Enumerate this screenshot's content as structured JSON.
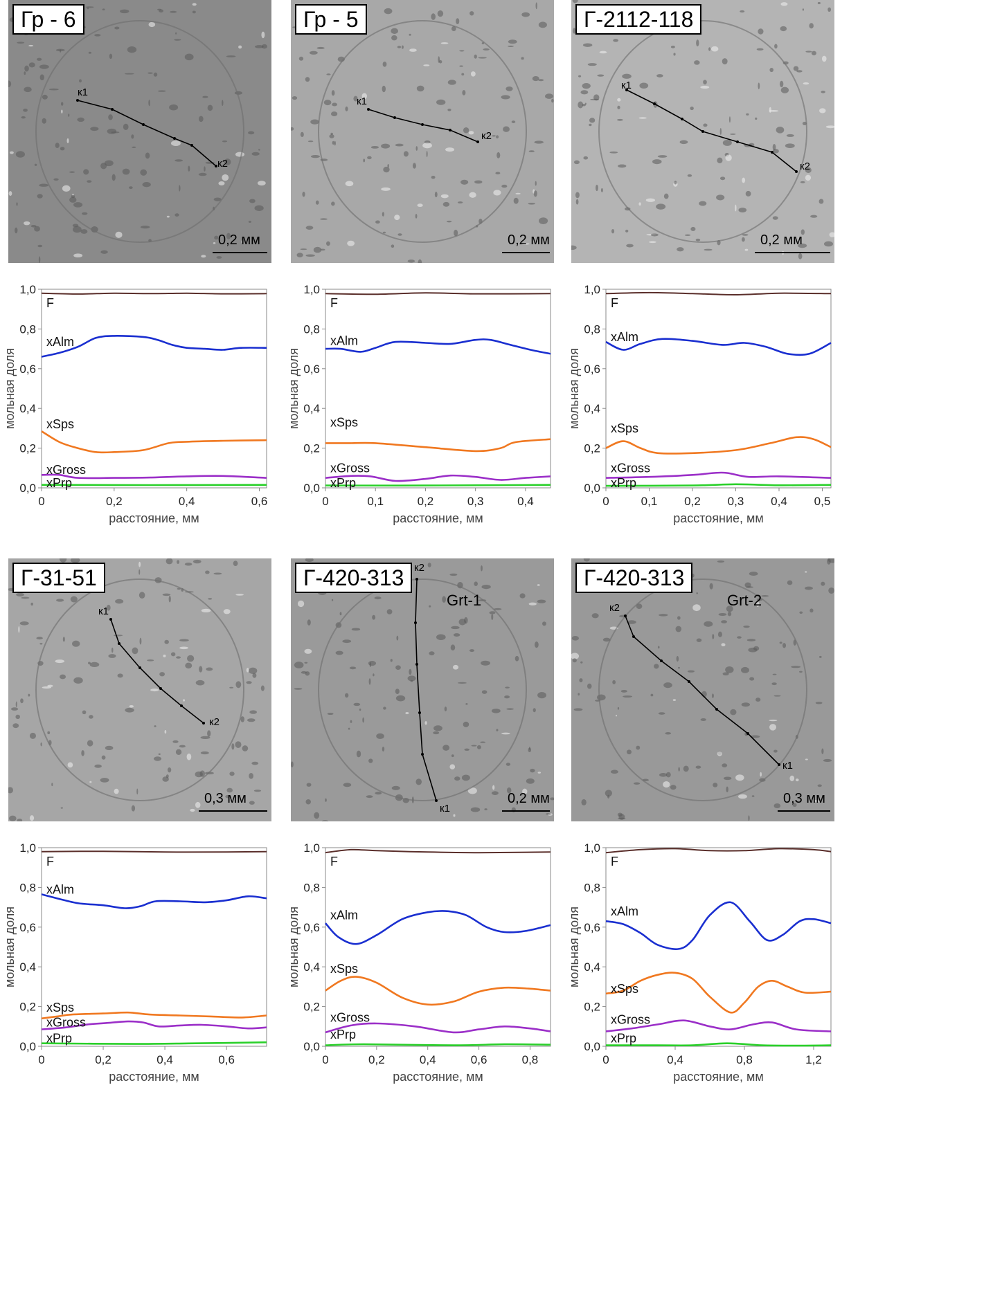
{
  "images": [
    {
      "sample": "Гр - 6",
      "grain": "",
      "start_label": "к1",
      "end_label": "к2",
      "scale": "0,2 мм",
      "tone": "#8a8a8a"
    },
    {
      "sample": "Гр - 5",
      "grain": "",
      "start_label": "к1",
      "end_label": "к2",
      "scale": "0,2 мм",
      "tone": "#a8a8a8"
    },
    {
      "sample": "Г-2112-118",
      "grain": "",
      "start_label": "к1",
      "end_label": "к2",
      "scale": "0,2 мм",
      "tone": "#b4b4b4"
    },
    {
      "sample": "Г-31-51",
      "grain": "",
      "start_label": "к1",
      "end_label": "к2",
      "scale": "0,3 мм",
      "tone": "#a6a6a6"
    },
    {
      "sample": "Г-420-313",
      "grain": "Grt-1",
      "start_label": "к1",
      "end_label": "к2",
      "scale": "0,2 мм",
      "tone": "#9a9a9a"
    },
    {
      "sample": "Г-420-313",
      "grain": "Grt-2",
      "start_label": "к1",
      "end_label": "к2",
      "scale": "0,3 мм",
      "tone": "#999999"
    }
  ],
  "colors": {
    "F": "#5a2e2a",
    "xAlm": "#1a2fd0",
    "xSps": "#f07820",
    "xGross": "#9b2fc8",
    "xPrp": "#2ad02a"
  },
  "chart_data": [
    {
      "type": "line",
      "xlabel": "расстояние, мм",
      "ylabel": "мольная доля",
      "xlim": [
        0,
        0.62
      ],
      "ylim": [
        0,
        1.0
      ],
      "xticks": [
        "0",
        "0,2",
        "0,4",
        "0,6"
      ],
      "xtick_values": [
        0,
        0.2,
        0.4,
        0.6
      ],
      "yticks": [
        "0,0",
        "0,2",
        "0,4",
        "0,6",
        "0,8",
        "1,0"
      ],
      "series": [
        {
          "name": "F",
          "x": [
            0,
            0.1,
            0.2,
            0.3,
            0.4,
            0.5,
            0.62
          ],
          "y": [
            0.98,
            0.976,
            0.98,
            0.978,
            0.98,
            0.977,
            0.978
          ]
        },
        {
          "name": "xAlm",
          "x": [
            0,
            0.05,
            0.1,
            0.15,
            0.2,
            0.28,
            0.32,
            0.36,
            0.4,
            0.45,
            0.5,
            0.55,
            0.62
          ],
          "y": [
            0.66,
            0.68,
            0.71,
            0.755,
            0.765,
            0.76,
            0.745,
            0.72,
            0.705,
            0.7,
            0.695,
            0.705,
            0.705
          ]
        },
        {
          "name": "xSps",
          "x": [
            0,
            0.05,
            0.1,
            0.15,
            0.2,
            0.28,
            0.35,
            0.4,
            0.5,
            0.62
          ],
          "y": [
            0.285,
            0.23,
            0.2,
            0.18,
            0.18,
            0.19,
            0.225,
            0.232,
            0.237,
            0.24
          ]
        },
        {
          "name": "xGross",
          "x": [
            0,
            0.05,
            0.1,
            0.2,
            0.3,
            0.4,
            0.5,
            0.62
          ],
          "y": [
            0.065,
            0.065,
            0.05,
            0.05,
            0.052,
            0.058,
            0.06,
            0.05
          ]
        },
        {
          "name": "xPrp",
          "x": [
            0,
            0.3,
            0.62
          ],
          "y": [
            0.015,
            0.014,
            0.015
          ]
        }
      ],
      "label_pos": {
        "F": 0.93,
        "xAlm": 0.735,
        "xSps": 0.32,
        "xGross": 0.09,
        "xPrp": 0.025
      }
    },
    {
      "type": "line",
      "xlabel": "расстояние, мм",
      "ylabel": "мольная доля",
      "xlim": [
        0,
        0.45
      ],
      "ylim": [
        0,
        1.0
      ],
      "xticks": [
        "0",
        "0,1",
        "0,2",
        "0,3",
        "0,4"
      ],
      "xtick_values": [
        0,
        0.1,
        0.2,
        0.3,
        0.4
      ],
      "yticks": [
        "0,0",
        "0,2",
        "0,4",
        "0,6",
        "0,8",
        "1,0"
      ],
      "series": [
        {
          "name": "F",
          "x": [
            0,
            0.1,
            0.2,
            0.3,
            0.45
          ],
          "y": [
            0.978,
            0.975,
            0.982,
            0.977,
            0.978
          ]
        },
        {
          "name": "xAlm",
          "x": [
            0,
            0.03,
            0.07,
            0.1,
            0.14,
            0.2,
            0.25,
            0.3,
            0.33,
            0.37,
            0.41,
            0.45
          ],
          "y": [
            0.7,
            0.7,
            0.685,
            0.705,
            0.735,
            0.73,
            0.725,
            0.745,
            0.745,
            0.72,
            0.695,
            0.675
          ]
        },
        {
          "name": "xSps",
          "x": [
            0,
            0.05,
            0.1,
            0.2,
            0.3,
            0.35,
            0.38,
            0.45
          ],
          "y": [
            0.225,
            0.225,
            0.225,
            0.205,
            0.185,
            0.2,
            0.23,
            0.245
          ]
        },
        {
          "name": "xGross",
          "x": [
            0,
            0.05,
            0.09,
            0.14,
            0.2,
            0.25,
            0.3,
            0.35,
            0.4,
            0.45
          ],
          "y": [
            0.05,
            0.06,
            0.058,
            0.035,
            0.045,
            0.062,
            0.055,
            0.04,
            0.05,
            0.058
          ]
        },
        {
          "name": "xPrp",
          "x": [
            0,
            0.2,
            0.45
          ],
          "y": [
            0.012,
            0.012,
            0.015
          ]
        }
      ],
      "label_pos": {
        "F": 0.93,
        "xAlm": 0.74,
        "xSps": 0.33,
        "xGross": 0.1,
        "xPrp": 0.025
      }
    },
    {
      "type": "line",
      "xlabel": "расстояние, мм",
      "ylabel": "мольная доля",
      "xlim": [
        0,
        0.52
      ],
      "ylim": [
        0,
        1.0
      ],
      "xticks": [
        "0",
        "0,1",
        "0,2",
        "0,3",
        "0,4",
        "0,5"
      ],
      "xtick_values": [
        0,
        0.1,
        0.2,
        0.3,
        0.4,
        0.5
      ],
      "yticks": [
        "0,0",
        "0,2",
        "0,4",
        "0,6",
        "0,8",
        "1,0"
      ],
      "series": [
        {
          "name": "F",
          "x": [
            0,
            0.1,
            0.2,
            0.3,
            0.4,
            0.52
          ],
          "y": [
            0.978,
            0.983,
            0.978,
            0.972,
            0.98,
            0.978
          ]
        },
        {
          "name": "xAlm",
          "x": [
            0,
            0.04,
            0.08,
            0.13,
            0.2,
            0.27,
            0.32,
            0.37,
            0.42,
            0.47,
            0.52
          ],
          "y": [
            0.735,
            0.695,
            0.725,
            0.75,
            0.74,
            0.72,
            0.73,
            0.71,
            0.675,
            0.675,
            0.73
          ]
        },
        {
          "name": "xSps",
          "x": [
            0,
            0.04,
            0.08,
            0.12,
            0.2,
            0.3,
            0.38,
            0.44,
            0.48,
            0.52
          ],
          "y": [
            0.2,
            0.235,
            0.2,
            0.175,
            0.175,
            0.19,
            0.225,
            0.255,
            0.245,
            0.205
          ]
        },
        {
          "name": "xGross",
          "x": [
            0,
            0.1,
            0.2,
            0.25,
            0.28,
            0.33,
            0.4,
            0.52
          ],
          "y": [
            0.05,
            0.055,
            0.065,
            0.075,
            0.075,
            0.055,
            0.058,
            0.05
          ]
        },
        {
          "name": "xPrp",
          "x": [
            0,
            0.2,
            0.3,
            0.4,
            0.52
          ],
          "y": [
            0.01,
            0.012,
            0.018,
            0.013,
            0.015
          ]
        }
      ],
      "label_pos": {
        "F": 0.93,
        "xAlm": 0.76,
        "xSps": 0.3,
        "xGross": 0.1,
        "xPrp": 0.025
      }
    },
    {
      "type": "line",
      "xlabel": "расстояние, мм",
      "ylabel": "мольная доля",
      "xlim": [
        0,
        0.73
      ],
      "ylim": [
        0,
        1.0
      ],
      "xticks": [
        "0",
        "0,2",
        "0,4",
        "0,6"
      ],
      "xtick_values": [
        0,
        0.2,
        0.4,
        0.6
      ],
      "yticks": [
        "0,0",
        "0,2",
        "0,4",
        "0,6",
        "0,8",
        "1,0"
      ],
      "series": [
        {
          "name": "F",
          "x": [
            0,
            0.2,
            0.4,
            0.6,
            0.73
          ],
          "y": [
            0.98,
            0.982,
            0.978,
            0.978,
            0.98
          ]
        },
        {
          "name": "xAlm",
          "x": [
            0,
            0.05,
            0.12,
            0.2,
            0.27,
            0.32,
            0.37,
            0.45,
            0.53,
            0.6,
            0.67,
            0.73
          ],
          "y": [
            0.765,
            0.745,
            0.72,
            0.71,
            0.695,
            0.705,
            0.73,
            0.73,
            0.725,
            0.735,
            0.755,
            0.745
          ]
        },
        {
          "name": "xSps",
          "x": [
            0,
            0.05,
            0.1,
            0.2,
            0.28,
            0.35,
            0.45,
            0.55,
            0.65,
            0.73
          ],
          "y": [
            0.14,
            0.15,
            0.16,
            0.165,
            0.17,
            0.16,
            0.155,
            0.15,
            0.145,
            0.155
          ]
        },
        {
          "name": "xGross",
          "x": [
            0,
            0.08,
            0.15,
            0.22,
            0.28,
            0.33,
            0.38,
            0.45,
            0.52,
            0.6,
            0.67,
            0.73
          ],
          "y": [
            0.085,
            0.095,
            0.11,
            0.118,
            0.125,
            0.12,
            0.1,
            0.105,
            0.108,
            0.1,
            0.09,
            0.095
          ]
        },
        {
          "name": "xPrp",
          "x": [
            0,
            0.3,
            0.5,
            0.73
          ],
          "y": [
            0.015,
            0.012,
            0.015,
            0.02
          ]
        }
      ],
      "label_pos": {
        "F": 0.93,
        "xAlm": 0.79,
        "xSps": 0.195,
        "xGross": 0.12,
        "xPrp": 0.04
      }
    },
    {
      "type": "line",
      "xlabel": "расстояние, мм",
      "ylabel": "мольная доля",
      "xlim": [
        0,
        0.88
      ],
      "ylim": [
        0,
        1.0
      ],
      "xticks": [
        "0",
        "0,2",
        "0,4",
        "0,6",
        "0,8"
      ],
      "xtick_values": [
        0,
        0.2,
        0.4,
        0.6,
        0.8
      ],
      "yticks": [
        "0,0",
        "0,2",
        "0,4",
        "0,6",
        "0,8",
        "1,0"
      ],
      "series": [
        {
          "name": "F",
          "x": [
            0,
            0.1,
            0.2,
            0.4,
            0.6,
            0.88
          ],
          "y": [
            0.975,
            0.99,
            0.985,
            0.978,
            0.975,
            0.978
          ]
        },
        {
          "name": "xAlm",
          "x": [
            0,
            0.05,
            0.12,
            0.2,
            0.3,
            0.4,
            0.48,
            0.55,
            0.63,
            0.7,
            0.78,
            0.88
          ],
          "y": [
            0.62,
            0.55,
            0.515,
            0.56,
            0.64,
            0.675,
            0.68,
            0.66,
            0.6,
            0.575,
            0.58,
            0.61
          ]
        },
        {
          "name": "xSps",
          "x": [
            0,
            0.06,
            0.12,
            0.2,
            0.3,
            0.4,
            0.5,
            0.6,
            0.7,
            0.8,
            0.88
          ],
          "y": [
            0.28,
            0.33,
            0.35,
            0.32,
            0.245,
            0.21,
            0.225,
            0.275,
            0.295,
            0.29,
            0.28
          ]
        },
        {
          "name": "xGross",
          "x": [
            0,
            0.1,
            0.2,
            0.35,
            0.5,
            0.6,
            0.7,
            0.8,
            0.88
          ],
          "y": [
            0.07,
            0.105,
            0.115,
            0.1,
            0.07,
            0.085,
            0.1,
            0.09,
            0.075
          ]
        },
        {
          "name": "xPrp",
          "x": [
            0,
            0.15,
            0.5,
            0.7,
            0.88
          ],
          "y": [
            0.005,
            0.01,
            0.005,
            0.01,
            0.008
          ]
        }
      ],
      "label_pos": {
        "F": 0.93,
        "xAlm": 0.66,
        "xSps": 0.39,
        "xGross": 0.145,
        "xPrp": 0.06
      }
    },
    {
      "type": "line",
      "xlabel": "расстояние, мм",
      "ylabel": "мольная доля",
      "xlim": [
        0,
        1.3
      ],
      "ylim": [
        0,
        1.0
      ],
      "xticks": [
        "0",
        "0,4",
        "0,8",
        "1,2"
      ],
      "xtick_values": [
        0,
        0.4,
        0.8,
        1.2
      ],
      "yticks": [
        "0,0",
        "0,2",
        "0,4",
        "0,6",
        "0,8",
        "1,0"
      ],
      "series": [
        {
          "name": "F",
          "x": [
            0,
            0.2,
            0.4,
            0.6,
            0.8,
            1.0,
            1.2,
            1.3
          ],
          "y": [
            0.975,
            0.99,
            0.995,
            0.985,
            0.985,
            0.995,
            0.99,
            0.98
          ]
        },
        {
          "name": "xAlm",
          "x": [
            0,
            0.1,
            0.2,
            0.3,
            0.42,
            0.5,
            0.6,
            0.72,
            0.83,
            0.93,
            1.02,
            1.12,
            1.2,
            1.3
          ],
          "y": [
            0.63,
            0.615,
            0.57,
            0.51,
            0.49,
            0.535,
            0.66,
            0.725,
            0.63,
            0.535,
            0.56,
            0.63,
            0.64,
            0.62
          ]
        },
        {
          "name": "xSps",
          "x": [
            0,
            0.1,
            0.2,
            0.3,
            0.4,
            0.5,
            0.6,
            0.72,
            0.8,
            0.88,
            0.96,
            1.05,
            1.15,
            1.3
          ],
          "y": [
            0.265,
            0.28,
            0.33,
            0.36,
            0.37,
            0.34,
            0.25,
            0.17,
            0.22,
            0.3,
            0.33,
            0.3,
            0.27,
            0.275
          ]
        },
        {
          "name": "xGross",
          "x": [
            0,
            0.15,
            0.3,
            0.45,
            0.6,
            0.72,
            0.85,
            0.96,
            1.1,
            1.3
          ],
          "y": [
            0.075,
            0.09,
            0.11,
            0.13,
            0.1,
            0.085,
            0.11,
            0.12,
            0.085,
            0.075
          ]
        },
        {
          "name": "xPrp",
          "x": [
            0,
            0.3,
            0.5,
            0.7,
            0.9,
            1.1,
            1.3
          ],
          "y": [
            0.005,
            0.005,
            0.005,
            0.015,
            0.005,
            0.003,
            0.005
          ]
        }
      ],
      "label_pos": {
        "F": 0.93,
        "xAlm": 0.68,
        "xSps": 0.29,
        "xGross": 0.135,
        "xPrp": 0.04
      }
    }
  ]
}
